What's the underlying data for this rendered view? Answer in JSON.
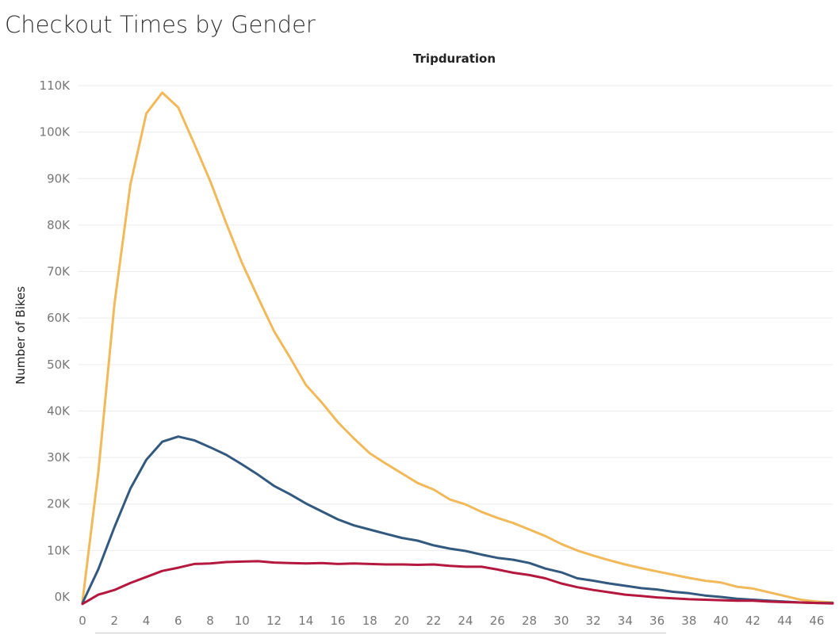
{
  "page": {
    "title": "Checkout Times by Gender"
  },
  "chart_data": {
    "type": "line",
    "title": "Checkout Times by Gender",
    "header": "Tripduration",
    "xlabel": "",
    "ylabel": "Number of Bikes",
    "xlim": [
      0,
      47
    ],
    "ylim": [
      -1500,
      111000
    ],
    "xticks": [
      0,
      2,
      4,
      6,
      8,
      10,
      12,
      14,
      16,
      18,
      20,
      22,
      24,
      26,
      28,
      30,
      32,
      34,
      36,
      38,
      40,
      42,
      44,
      46
    ],
    "yticks": [
      0,
      10000,
      20000,
      30000,
      40000,
      50000,
      60000,
      70000,
      80000,
      90000,
      100000,
      110000
    ],
    "ytick_labels": [
      "0K",
      "10K",
      "20K",
      "30K",
      "40K",
      "50K",
      "60K",
      "70K",
      "80K",
      "90K",
      "100K",
      "110K"
    ],
    "grid": true,
    "legend": "none",
    "x": [
      0,
      1,
      2,
      3,
      4,
      5,
      6,
      7,
      8,
      9,
      10,
      11,
      12,
      13,
      14,
      15,
      16,
      17,
      18,
      19,
      20,
      21,
      22,
      23,
      24,
      25,
      26,
      27,
      28,
      29,
      30,
      31,
      32,
      33,
      34,
      35,
      36,
      37,
      38,
      39,
      40,
      41,
      42,
      43,
      44,
      45,
      46,
      47
    ],
    "series": [
      {
        "color": "#f1b95a",
        "values": [
          -1000,
          27000,
          63000,
          88700,
          104000,
          108500,
          105300,
          97500,
          89500,
          80500,
          71800,
          64400,
          57200,
          51500,
          45600,
          41800,
          37600,
          34100,
          30900,
          28700,
          26600,
          24500,
          23100,
          21000,
          19900,
          18300,
          17000,
          15900,
          14500,
          13100,
          11400,
          10000,
          8900,
          7900,
          7000,
          6200,
          5500,
          4800,
          4100,
          3500,
          3100,
          2200,
          1800,
          1000,
          200,
          -600,
          -1000,
          -1200
        ],
        "line_x": [
          0,
          1,
          2,
          3,
          4,
          5,
          6,
          7,
          8,
          9,
          10,
          11,
          12,
          13,
          14,
          15,
          16,
          17,
          18,
          19,
          20,
          21,
          22,
          23,
          24,
          25,
          26,
          27,
          28,
          29,
          30,
          31,
          32,
          33,
          34,
          35,
          36,
          37,
          38,
          39,
          40,
          41,
          42,
          43,
          44,
          45,
          46,
          47
        ]
      },
      {
        "color": "#33597f",
        "values": [
          -1300,
          6000,
          15000,
          23300,
          29500,
          33400,
          34500,
          33700,
          32200,
          30600,
          28500,
          26300,
          23900,
          22100,
          20100,
          18400,
          16700,
          15400,
          14500,
          13600,
          12700,
          12100,
          11100,
          10400,
          9900,
          9100,
          8400,
          8000,
          7300,
          6100,
          5300,
          4000,
          3500,
          2900,
          2400,
          1900,
          1600,
          1100,
          800,
          300,
          0,
          -400,
          -600,
          -800,
          -1000,
          -1200,
          -1300,
          -1300
        ],
        "line_x": [
          0,
          1,
          2,
          3,
          4,
          5,
          6,
          7,
          8,
          9,
          10,
          11,
          12,
          13,
          14,
          15,
          16,
          17,
          18,
          19,
          20,
          21,
          22,
          23,
          24,
          25,
          26,
          27,
          28,
          29,
          30,
          31,
          32,
          33,
          34,
          35,
          36,
          37,
          38,
          39,
          40,
          41,
          42,
          43,
          44,
          45,
          46,
          47
        ]
      },
      {
        "color": "#b5183e",
        "values": [
          -1500,
          500,
          1500,
          3000,
          4300,
          5600,
          6300,
          7100,
          7200,
          7500,
          7600,
          7700,
          7400,
          7300,
          7200,
          7300,
          7100,
          7200,
          7100,
          7000,
          7000,
          6900,
          7000,
          6700,
          6500,
          6500,
          5900,
          5200,
          4700,
          4000,
          2900,
          2100,
          1500,
          1000,
          500,
          200,
          -100,
          -300,
          -500,
          -600,
          -700,
          -800,
          -800,
          -1000,
          -1100,
          -1200,
          -1300,
          -1400
        ],
        "line_x": [
          0,
          1,
          2,
          3,
          4,
          5,
          6,
          7,
          8,
          9,
          10,
          11,
          12,
          13,
          14,
          15,
          16,
          17,
          18,
          19,
          20,
          21,
          22,
          23,
          24,
          25,
          26,
          27,
          28,
          29,
          30,
          31,
          32,
          33,
          34,
          35,
          36,
          37,
          38,
          39,
          40,
          41,
          42,
          43,
          44,
          45,
          46,
          47
        ]
      }
    ]
  }
}
